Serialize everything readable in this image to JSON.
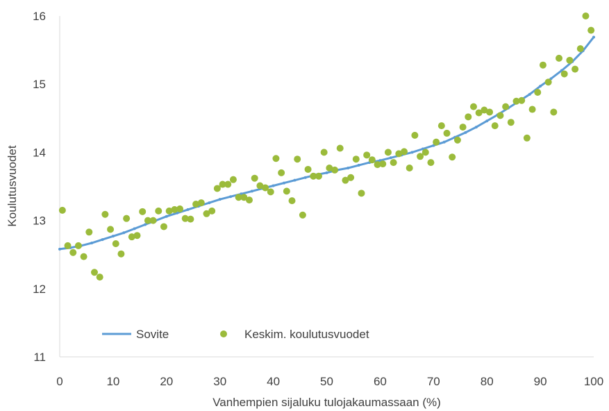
{
  "chart_data": {
    "type": "scatter",
    "xlabel": "Vanhempien sijaluku tulojakaumassaan (%)",
    "ylabel": "Koulutusvuodet",
    "xlim": [
      0,
      100
    ],
    "ylim": [
      11,
      16
    ],
    "x_ticks": [
      0,
      10,
      20,
      30,
      40,
      50,
      60,
      70,
      80,
      90,
      100
    ],
    "y_ticks": [
      11,
      12,
      13,
      14,
      15,
      16
    ],
    "grid": false,
    "legend_position": "bottom-left",
    "colors": {
      "fit": "#5b9bd5",
      "points": "#9bbb3b",
      "axis": "#d9d9d9"
    },
    "series": [
      {
        "name": "Keskim. koulutusvuodet",
        "kind": "scatter",
        "x": [
          0.5,
          1.5,
          2.5,
          3.5,
          4.5,
          5.5,
          6.5,
          7.5,
          8.5,
          9.5,
          10.5,
          11.5,
          12.5,
          13.5,
          14.5,
          15.5,
          16.5,
          17.5,
          18.5,
          19.5,
          20.5,
          21.5,
          22.5,
          23.5,
          24.5,
          25.5,
          26.5,
          27.5,
          28.5,
          29.5,
          30.5,
          31.5,
          32.5,
          33.5,
          34.5,
          35.5,
          36.5,
          37.5,
          38.5,
          39.5,
          40.5,
          41.5,
          42.5,
          43.5,
          44.5,
          45.5,
          46.5,
          47.5,
          48.5,
          49.5,
          50.5,
          51.5,
          52.5,
          53.5,
          54.5,
          55.5,
          56.5,
          57.5,
          58.5,
          59.5,
          60.5,
          61.5,
          62.5,
          63.5,
          64.5,
          65.5,
          66.5,
          67.5,
          68.5,
          69.5,
          70.5,
          71.5,
          72.5,
          73.5,
          74.5,
          75.5,
          76.5,
          77.5,
          78.5,
          79.5,
          80.5,
          81.5,
          82.5,
          83.5,
          84.5,
          85.5,
          86.5,
          87.5,
          88.5,
          89.5,
          90.5,
          91.5,
          92.5,
          93.5,
          94.5,
          95.5,
          96.5,
          97.5,
          98.5,
          99.5
        ],
        "y": [
          13.15,
          12.63,
          12.53,
          12.63,
          12.47,
          12.83,
          12.24,
          12.17,
          13.09,
          12.87,
          12.66,
          12.51,
          13.03,
          12.76,
          12.78,
          13.13,
          13.0,
          13.0,
          13.14,
          12.91,
          13.14,
          13.16,
          13.17,
          13.03,
          13.02,
          13.24,
          13.26,
          13.1,
          13.14,
          13.47,
          13.53,
          13.53,
          13.6,
          13.34,
          13.34,
          13.3,
          13.62,
          13.51,
          13.48,
          13.42,
          13.91,
          13.7,
          13.43,
          13.29,
          13.9,
          13.08,
          13.75,
          13.65,
          13.65,
          14.0,
          13.77,
          13.74,
          14.06,
          13.59,
          13.63,
          13.9,
          13.4,
          13.96,
          13.89,
          13.82,
          13.83,
          14.0,
          13.85,
          13.98,
          14.01,
          13.77,
          14.25,
          13.94,
          14.0,
          13.85,
          14.15,
          14.39,
          14.28,
          13.93,
          14.18,
          14.37,
          14.52,
          14.67,
          14.58,
          14.62,
          14.59,
          14.39,
          14.54,
          14.67,
          14.44,
          14.75,
          14.76,
          14.21,
          14.63,
          14.88,
          15.28,
          15.03,
          14.59,
          15.38,
          15.15,
          15.35,
          15.22,
          15.52,
          16.0,
          15.79
        ]
      },
      {
        "name": "Sovite",
        "kind": "line",
        "x": [
          0,
          2,
          4,
          6,
          8,
          10,
          12,
          14,
          16,
          18,
          20,
          22,
          24,
          26,
          28,
          30,
          32,
          34,
          36,
          38,
          40,
          42,
          44,
          46,
          48,
          50,
          52,
          54,
          56,
          58,
          60,
          62,
          64,
          66,
          68,
          70,
          72,
          74,
          76,
          78,
          80,
          82,
          84,
          86,
          88,
          90,
          92,
          94,
          96,
          98,
          100
        ],
        "y": [
          12.58,
          12.6,
          12.63,
          12.67,
          12.72,
          12.77,
          12.82,
          12.88,
          12.94,
          13.0,
          13.06,
          13.11,
          13.16,
          13.21,
          13.26,
          13.31,
          13.35,
          13.39,
          13.43,
          13.47,
          13.51,
          13.55,
          13.59,
          13.63,
          13.67,
          13.7,
          13.74,
          13.77,
          13.81,
          13.85,
          13.88,
          13.92,
          13.96,
          14.0,
          14.05,
          14.1,
          14.15,
          14.22,
          14.29,
          14.37,
          14.46,
          14.55,
          14.65,
          14.75,
          14.85,
          14.97,
          15.08,
          15.2,
          15.33,
          15.49,
          15.69
        ]
      }
    ]
  }
}
